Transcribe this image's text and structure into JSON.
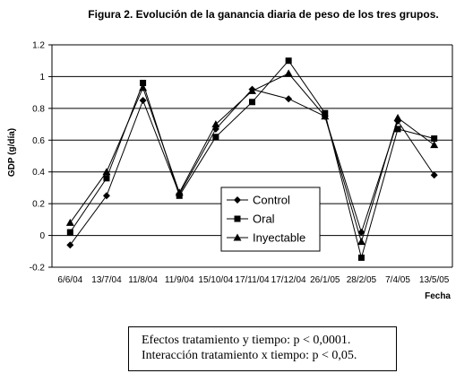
{
  "chart_data": {
    "type": "line",
    "title": "Figura 2. Evolución de la ganancia diaria de peso de los tres grupos.",
    "xlabel": "Fecha",
    "ylabel": "GDP (g/día)",
    "categories": [
      "6/6/04",
      "13/7/04",
      "11/8/04",
      "11/9/04",
      "15/10/04",
      "17/11/04",
      "17/12/04",
      "26/1/05",
      "28/2/05",
      "7/4/05",
      "13/5/05"
    ],
    "ylim": [
      -0.2,
      1.2
    ],
    "yticks": [
      "-0.2",
      "0",
      "0.2",
      "0.4",
      "0.6",
      "0.8",
      "1",
      "1.2"
    ],
    "grid": "horizontal",
    "legend_position": "inside-bottom-center",
    "series": [
      {
        "name": "Control",
        "marker": "diamond",
        "values": [
          -0.06,
          0.25,
          0.85,
          0.26,
          0.67,
          0.92,
          0.86,
          0.75,
          0.02,
          0.72,
          0.38
        ]
      },
      {
        "name": "Oral",
        "marker": "square",
        "values": [
          0.02,
          0.36,
          0.96,
          0.25,
          0.62,
          0.84,
          1.1,
          0.77,
          -0.14,
          0.67,
          0.61
        ]
      },
      {
        "name": "Inyectable",
        "marker": "triangle",
        "values": [
          0.08,
          0.4,
          0.93,
          0.27,
          0.7,
          0.91,
          1.02,
          0.75,
          -0.04,
          0.74,
          0.57
        ]
      }
    ]
  },
  "notes": {
    "line1": "Efectos tratamiento y tiempo: p < 0,0001.",
    "line2": "Interacción tratamiento x tiempo: p < 0,05."
  }
}
